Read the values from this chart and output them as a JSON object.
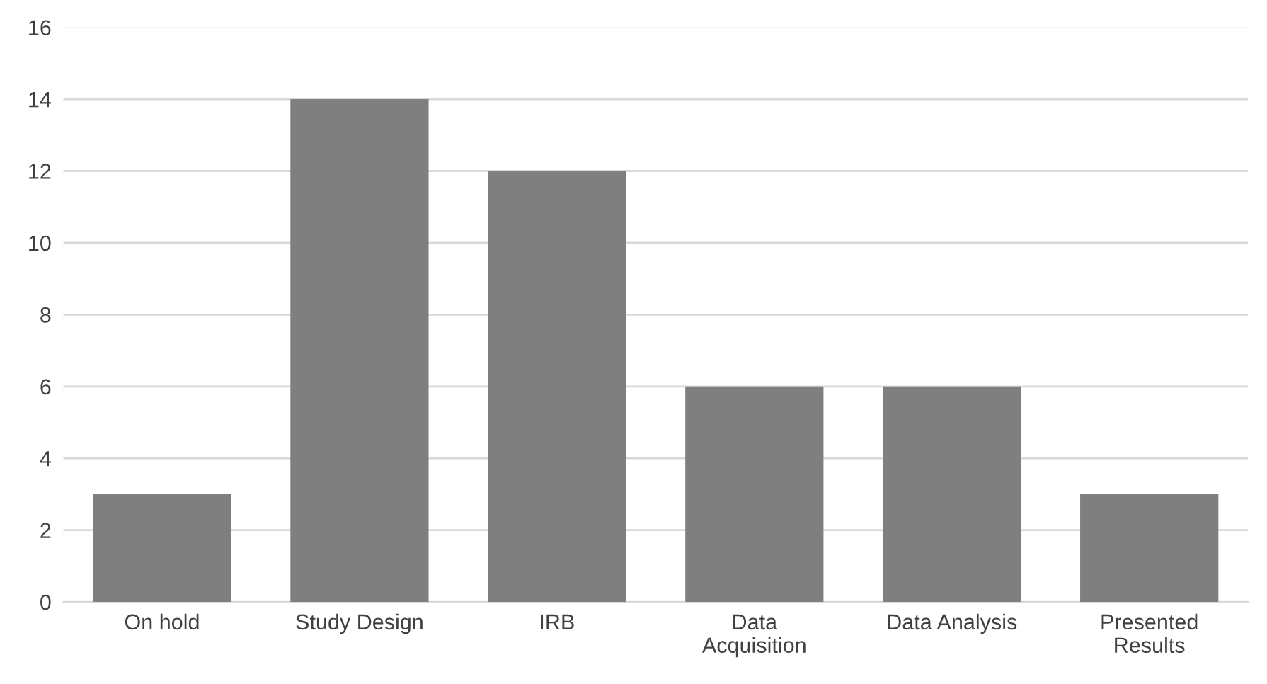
{
  "chart_data": {
    "type": "bar",
    "categories": [
      "On hold",
      "Study Design",
      "IRB",
      "Data\nAcquisition",
      "Data Analysis",
      "Presented\nResults"
    ],
    "values": [
      3,
      14,
      12,
      6,
      6,
      3
    ],
    "color": "#7f7f7f",
    "ylim": [
      0,
      16
    ],
    "yticks": [
      0,
      2,
      4,
      6,
      8,
      10,
      12,
      14,
      16
    ],
    "grid": "y"
  }
}
